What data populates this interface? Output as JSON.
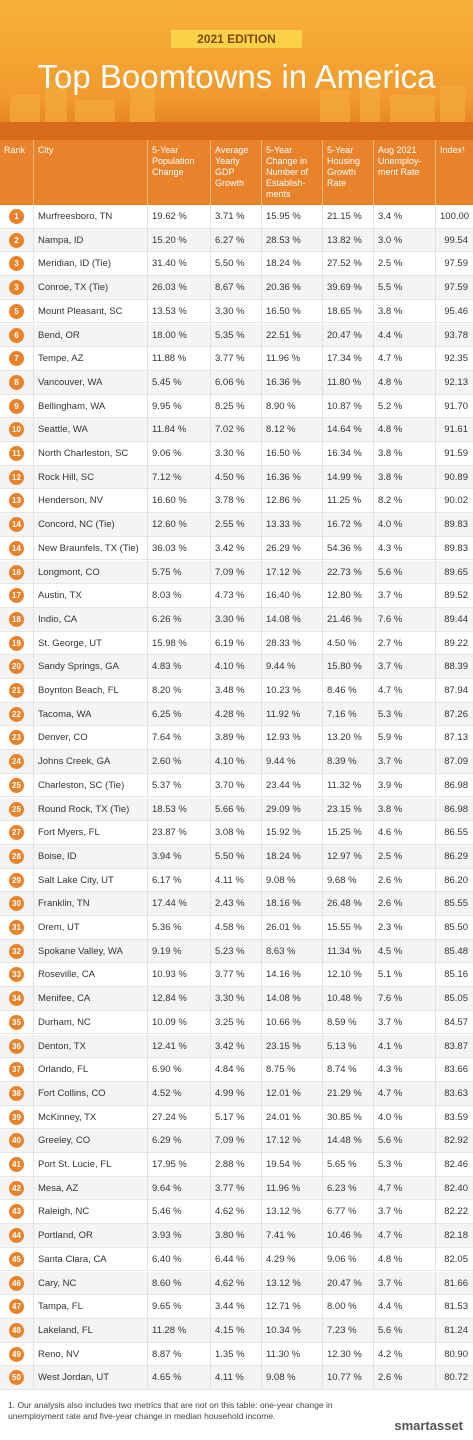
{
  "header": {
    "badge": "2021 EDITION",
    "title": "Top Boomtowns in America"
  },
  "table": {
    "columns": [
      "Rank",
      "City",
      "5-Year Population Change",
      "Average Yearly GDP Growth",
      "5-Year Change in Number of Establish-ments",
      "5-Year Housing Growth Rate",
      "Aug 2021 Unemploy-ment Rate",
      "Index¹"
    ],
    "rows": [
      [
        "1",
        "Murfreesboro, TN",
        "19.62 %",
        "3.71 %",
        "15.95 %",
        "21.15 %",
        "3.4 %",
        "100.00"
      ],
      [
        "2",
        "Nampa, ID",
        "15.20 %",
        "6.27 %",
        "28.53 %",
        "13.82 %",
        "3.0 %",
        "99.54"
      ],
      [
        "3",
        "Meridian, ID (Tie)",
        "31.40 %",
        "5.50 %",
        "18.24 %",
        "27.52 %",
        "2.5 %",
        "97.59"
      ],
      [
        "3",
        "Conroe, TX (Tie)",
        "26.03 %",
        "8.67 %",
        "20.36 %",
        "39.69 %",
        "5.5 %",
        "97.59"
      ],
      [
        "5",
        "Mount Pleasant, SC",
        "13.53 %",
        "3.30 %",
        "16.50 %",
        "18.65 %",
        "3.8 %",
        "95.46"
      ],
      [
        "6",
        "Bend, OR",
        "18.00 %",
        "5.35 %",
        "22.51 %",
        "20.47 %",
        "4.4 %",
        "93.78"
      ],
      [
        "7",
        "Tempe, AZ",
        "11.88 %",
        "3.77 %",
        "11.96 %",
        "17.34 %",
        "4.7 %",
        "92.35"
      ],
      [
        "8",
        "Vancouver, WA",
        "5.45 %",
        "6.06 %",
        "16.36 %",
        "11.80 %",
        "4.8 %",
        "92.13"
      ],
      [
        "9",
        "Bellingham, WA",
        "9.95 %",
        "8.25 %",
        "8.90 %",
        "10.87 %",
        "5.2 %",
        "91.70"
      ],
      [
        "10",
        "Seattle, WA",
        "11.84 %",
        "7.02 %",
        "8.12 %",
        "14.64 %",
        "4.8 %",
        "91.61"
      ],
      [
        "11",
        "North Charleston, SC",
        "9.06 %",
        "3.30 %",
        "16.50 %",
        "16.34 %",
        "3.8 %",
        "91.59"
      ],
      [
        "12",
        "Rock Hill, SC",
        "7.12 %",
        "4.50 %",
        "16.36 %",
        "14.99 %",
        "3.8 %",
        "90.89"
      ],
      [
        "13",
        "Henderson, NV",
        "16.60 %",
        "3.78 %",
        "12.86 %",
        "11.25 %",
        "8.2 %",
        "90.02"
      ],
      [
        "14",
        "Concord, NC (Tie)",
        "12.60 %",
        "2.55 %",
        "13.33 %",
        "16.72 %",
        "4.0 %",
        "89.83"
      ],
      [
        "14",
        "New Braunfels, TX (Tie)",
        "36.03 %",
        "3.42 %",
        "26.29 %",
        "54.36 %",
        "4.3 %",
        "89.83"
      ],
      [
        "16",
        "Longmont, CO",
        "5.75 %",
        "7.09 %",
        "17.12 %",
        "22.73 %",
        "5.6 %",
        "89.65"
      ],
      [
        "17",
        "Austin, TX",
        "8.03 %",
        "4.73 %",
        "16.40 %",
        "12.80 %",
        "3.7 %",
        "89.52"
      ],
      [
        "18",
        "Indio, CA",
        "6.26 %",
        "3.30 %",
        "14.08 %",
        "21.46 %",
        "7.6 %",
        "89.44"
      ],
      [
        "19",
        "St. George, UT",
        "15.98 %",
        "6.19 %",
        "28.33 %",
        "4.50 %",
        "2.7 %",
        "89.22"
      ],
      [
        "20",
        "Sandy Springs, GA",
        "4.83 %",
        "4.10 %",
        "9.44 %",
        "15.80 %",
        "3.7 %",
        "88.39"
      ],
      [
        "21",
        "Boynton Beach, FL",
        "8.20 %",
        "3.48 %",
        "10.23 %",
        "8.46 %",
        "4.7 %",
        "87.94"
      ],
      [
        "22",
        "Tacoma, WA",
        "6.25 %",
        "4.28 %",
        "11.92 %",
        "7.16 %",
        "5.3 %",
        "87.26"
      ],
      [
        "23",
        "Denver, CO",
        "7.64 %",
        "3.89 %",
        "12.93 %",
        "13.20 %",
        "5.9 %",
        "87.13"
      ],
      [
        "24",
        "Johns Creek, GA",
        "2.60 %",
        "4.10 %",
        "9.44 %",
        "8.39 %",
        "3.7 %",
        "87.09"
      ],
      [
        "25",
        "Charleston, SC (Tie)",
        "5.37 %",
        "3.70 %",
        "23.44 %",
        "11.32 %",
        "3.9 %",
        "86.98"
      ],
      [
        "25",
        "Round Rock, TX (Tie)",
        "18.53 %",
        "5.66 %",
        "29.09 %",
        "23.15 %",
        "3.8 %",
        "86.98"
      ],
      [
        "27",
        "Fort Myers, FL",
        "23.87 %",
        "3.08 %",
        "15.92 %",
        "15.25 %",
        "4.6 %",
        "86.55"
      ],
      [
        "28",
        "Boise, ID",
        "3.94 %",
        "5.50 %",
        "18.24 %",
        "12.97 %",
        "2.5 %",
        "86.29"
      ],
      [
        "29",
        "Salt Lake City, UT",
        "6.17 %",
        "4.11 %",
        "9.08 %",
        "9.68 %",
        "2.6 %",
        "86.20"
      ],
      [
        "30",
        "Franklin, TN",
        "17.44 %",
        "2.43 %",
        "18.16 %",
        "26.48 %",
        "2.6 %",
        "85.55"
      ],
      [
        "31",
        "Orem, UT",
        "5.36 %",
        "4.58 %",
        "26.01 %",
        "15.55 %",
        "2.3 %",
        "85.50"
      ],
      [
        "32",
        "Spokane Valley, WA",
        "9.19 %",
        "5.23 %",
        "8.63 %",
        "11.34 %",
        "4.5 %",
        "85.48"
      ],
      [
        "33",
        "Roseville, CA",
        "10.93 %",
        "3.77 %",
        "14.16 %",
        "12.10 %",
        "5.1 %",
        "85.16"
      ],
      [
        "34",
        "Menifee, CA",
        "12.84 %",
        "3.30 %",
        "14.08 %",
        "10.48 %",
        "7.6 %",
        "85.05"
      ],
      [
        "35",
        "Durham, NC",
        "10.09 %",
        "3.25 %",
        "10.66 %",
        "8.59 %",
        "3.7 %",
        "84.57"
      ],
      [
        "36",
        "Denton, TX",
        "12.41 %",
        "3.42 %",
        "23.15 %",
        "5.13 %",
        "4.1 %",
        "83.87"
      ],
      [
        "37",
        "Orlando, FL",
        "6.90 %",
        "4.84 %",
        "8.75 %",
        "8.74 %",
        "4.3 %",
        "83.66"
      ],
      [
        "38",
        "Fort Collins, CO",
        "4.52 %",
        "4.99 %",
        "12.01 %",
        "21.29 %",
        "4.7 %",
        "83.63"
      ],
      [
        "39",
        "McKinney, TX",
        "27.24 %",
        "5.17 %",
        "24.01 %",
        "30.85 %",
        "4.0 %",
        "83.59"
      ],
      [
        "40",
        "Greeley, CO",
        "6.29 %",
        "7.09 %",
        "17.12 %",
        "14.48 %",
        "5.6 %",
        "82.92"
      ],
      [
        "41",
        "Port St. Lucie, FL",
        "17.95 %",
        "2.88 %",
        "19.54 %",
        "5.65 %",
        "5.3 %",
        "82.46"
      ],
      [
        "42",
        "Mesa, AZ",
        "9.64 %",
        "3.77 %",
        "11.96 %",
        "6.23 %",
        "4.7 %",
        "82.40"
      ],
      [
        "43",
        "Raleigh, NC",
        "5.46 %",
        "4.62 %",
        "13.12 %",
        "6.77 %",
        "3.7 %",
        "82.22"
      ],
      [
        "44",
        "Portland, OR",
        "3.93 %",
        "3.80 %",
        "7.41 %",
        "10.46 %",
        "4.7 %",
        "82.18"
      ],
      [
        "45",
        "Santa Clara, CA",
        "6.40 %",
        "6.44 %",
        "4.29 %",
        "9.06 %",
        "4.8 %",
        "82.05"
      ],
      [
        "46",
        "Cary, NC",
        "8.60 %",
        "4.62 %",
        "13.12 %",
        "20.47 %",
        "3.7 %",
        "81.66"
      ],
      [
        "47",
        "Tampa, FL",
        "9.65 %",
        "3.44 %",
        "12.71 %",
        "8.00 %",
        "4.4 %",
        "81.53"
      ],
      [
        "48",
        "Lakeland, FL",
        "11.28 %",
        "4.15 %",
        "10.34 %",
        "7.23 %",
        "5.6 %",
        "81.24"
      ],
      [
        "49",
        "Reno, NV",
        "8.87 %",
        "1.35 %",
        "11.30 %",
        "12.30 %",
        "4.2 %",
        "80.90"
      ],
      [
        "50",
        "West Jordan, UT",
        "4.65 %",
        "4.11 %",
        "9.08 %",
        "10.77 %",
        "2.6 %",
        "80.72"
      ]
    ]
  },
  "footer": {
    "note": "1.  Our analysis also includes two metrics that are not on this table: one-year change in unemployment rate and five-year change in median household income.",
    "logo": "smartasset"
  }
}
